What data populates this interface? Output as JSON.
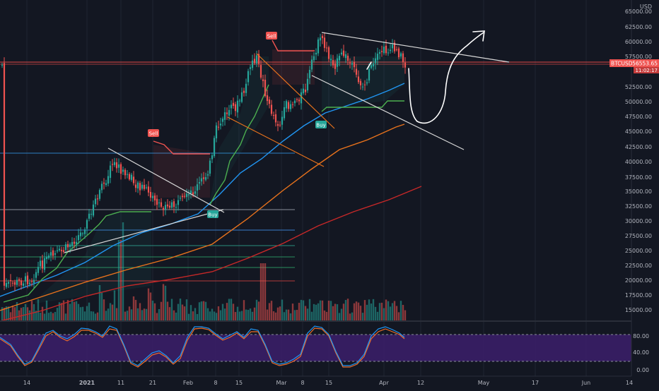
{
  "symbol": "BTCUSD",
  "last_price": "56553.65",
  "countdown": "11:02:17",
  "currency": "USD",
  "price_axis": [
    "65000.00",
    "62500.00",
    "60000.00",
    "57500.00",
    "52500.00",
    "50000.00",
    "47500.00",
    "45000.00",
    "42500.00",
    "40000.00",
    "37500.00",
    "35000.00",
    "32500.00",
    "30000.00",
    "27500.00",
    "25000.00",
    "22500.00",
    "20000.00",
    "17500.00",
    "15000.00"
  ],
  "osc_axis": [
    "80.00",
    "40.00",
    "0.00"
  ],
  "time_axis": [
    "14",
    "2021",
    "11",
    "21",
    "Feb",
    "8",
    "15",
    "Mar",
    "8",
    "15",
    "Apr",
    "12",
    "May",
    "17",
    "Jun",
    "14"
  ],
  "signals": [
    {
      "label": "Sell",
      "type": "sell"
    },
    {
      "label": "Sell",
      "type": "sell"
    },
    {
      "label": "Buy",
      "type": "buy"
    },
    {
      "label": "Buy",
      "type": "buy"
    }
  ],
  "colors": {
    "background": "#131722",
    "up": "#26a69a",
    "down": "#ef5350",
    "last_price_tag": "#ef5350",
    "stoch_band": "#3c1e6b",
    "ma_blue": "#2196f3",
    "ma_orange": "#e8721c",
    "ma_red": "#c62828"
  }
}
